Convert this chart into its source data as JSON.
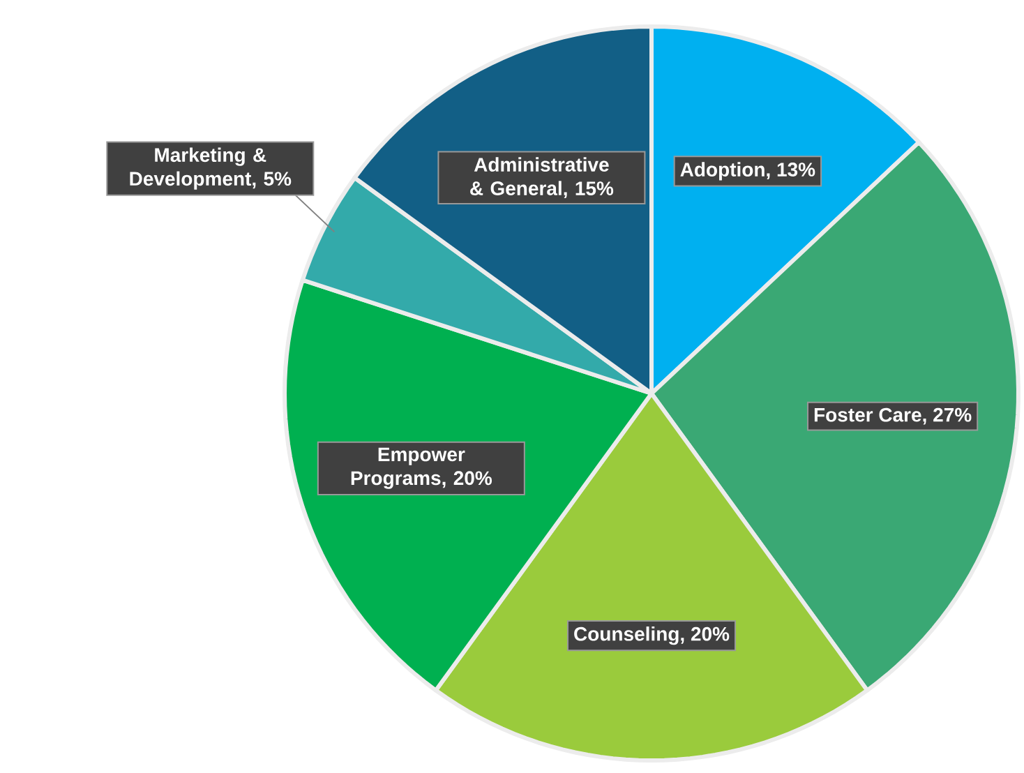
{
  "chart_data": {
    "type": "pie",
    "categories": [
      "Adoption",
      "Foster Care",
      "Counseling",
      "Empower Programs",
      "Marketing & Development",
      "Administrative & General"
    ],
    "values": [
      13,
      27,
      20,
      20,
      5,
      15
    ],
    "colors": [
      "#00b0f0",
      "#3aa874",
      "#9acb3c",
      "#00b050",
      "#33aaaa",
      "#125f86"
    ],
    "data_labels": true,
    "value_labels": [
      ", 13%",
      ", 27%",
      ", 20%",
      ", 20%",
      ", 5%",
      ", 15%"
    ]
  }
}
